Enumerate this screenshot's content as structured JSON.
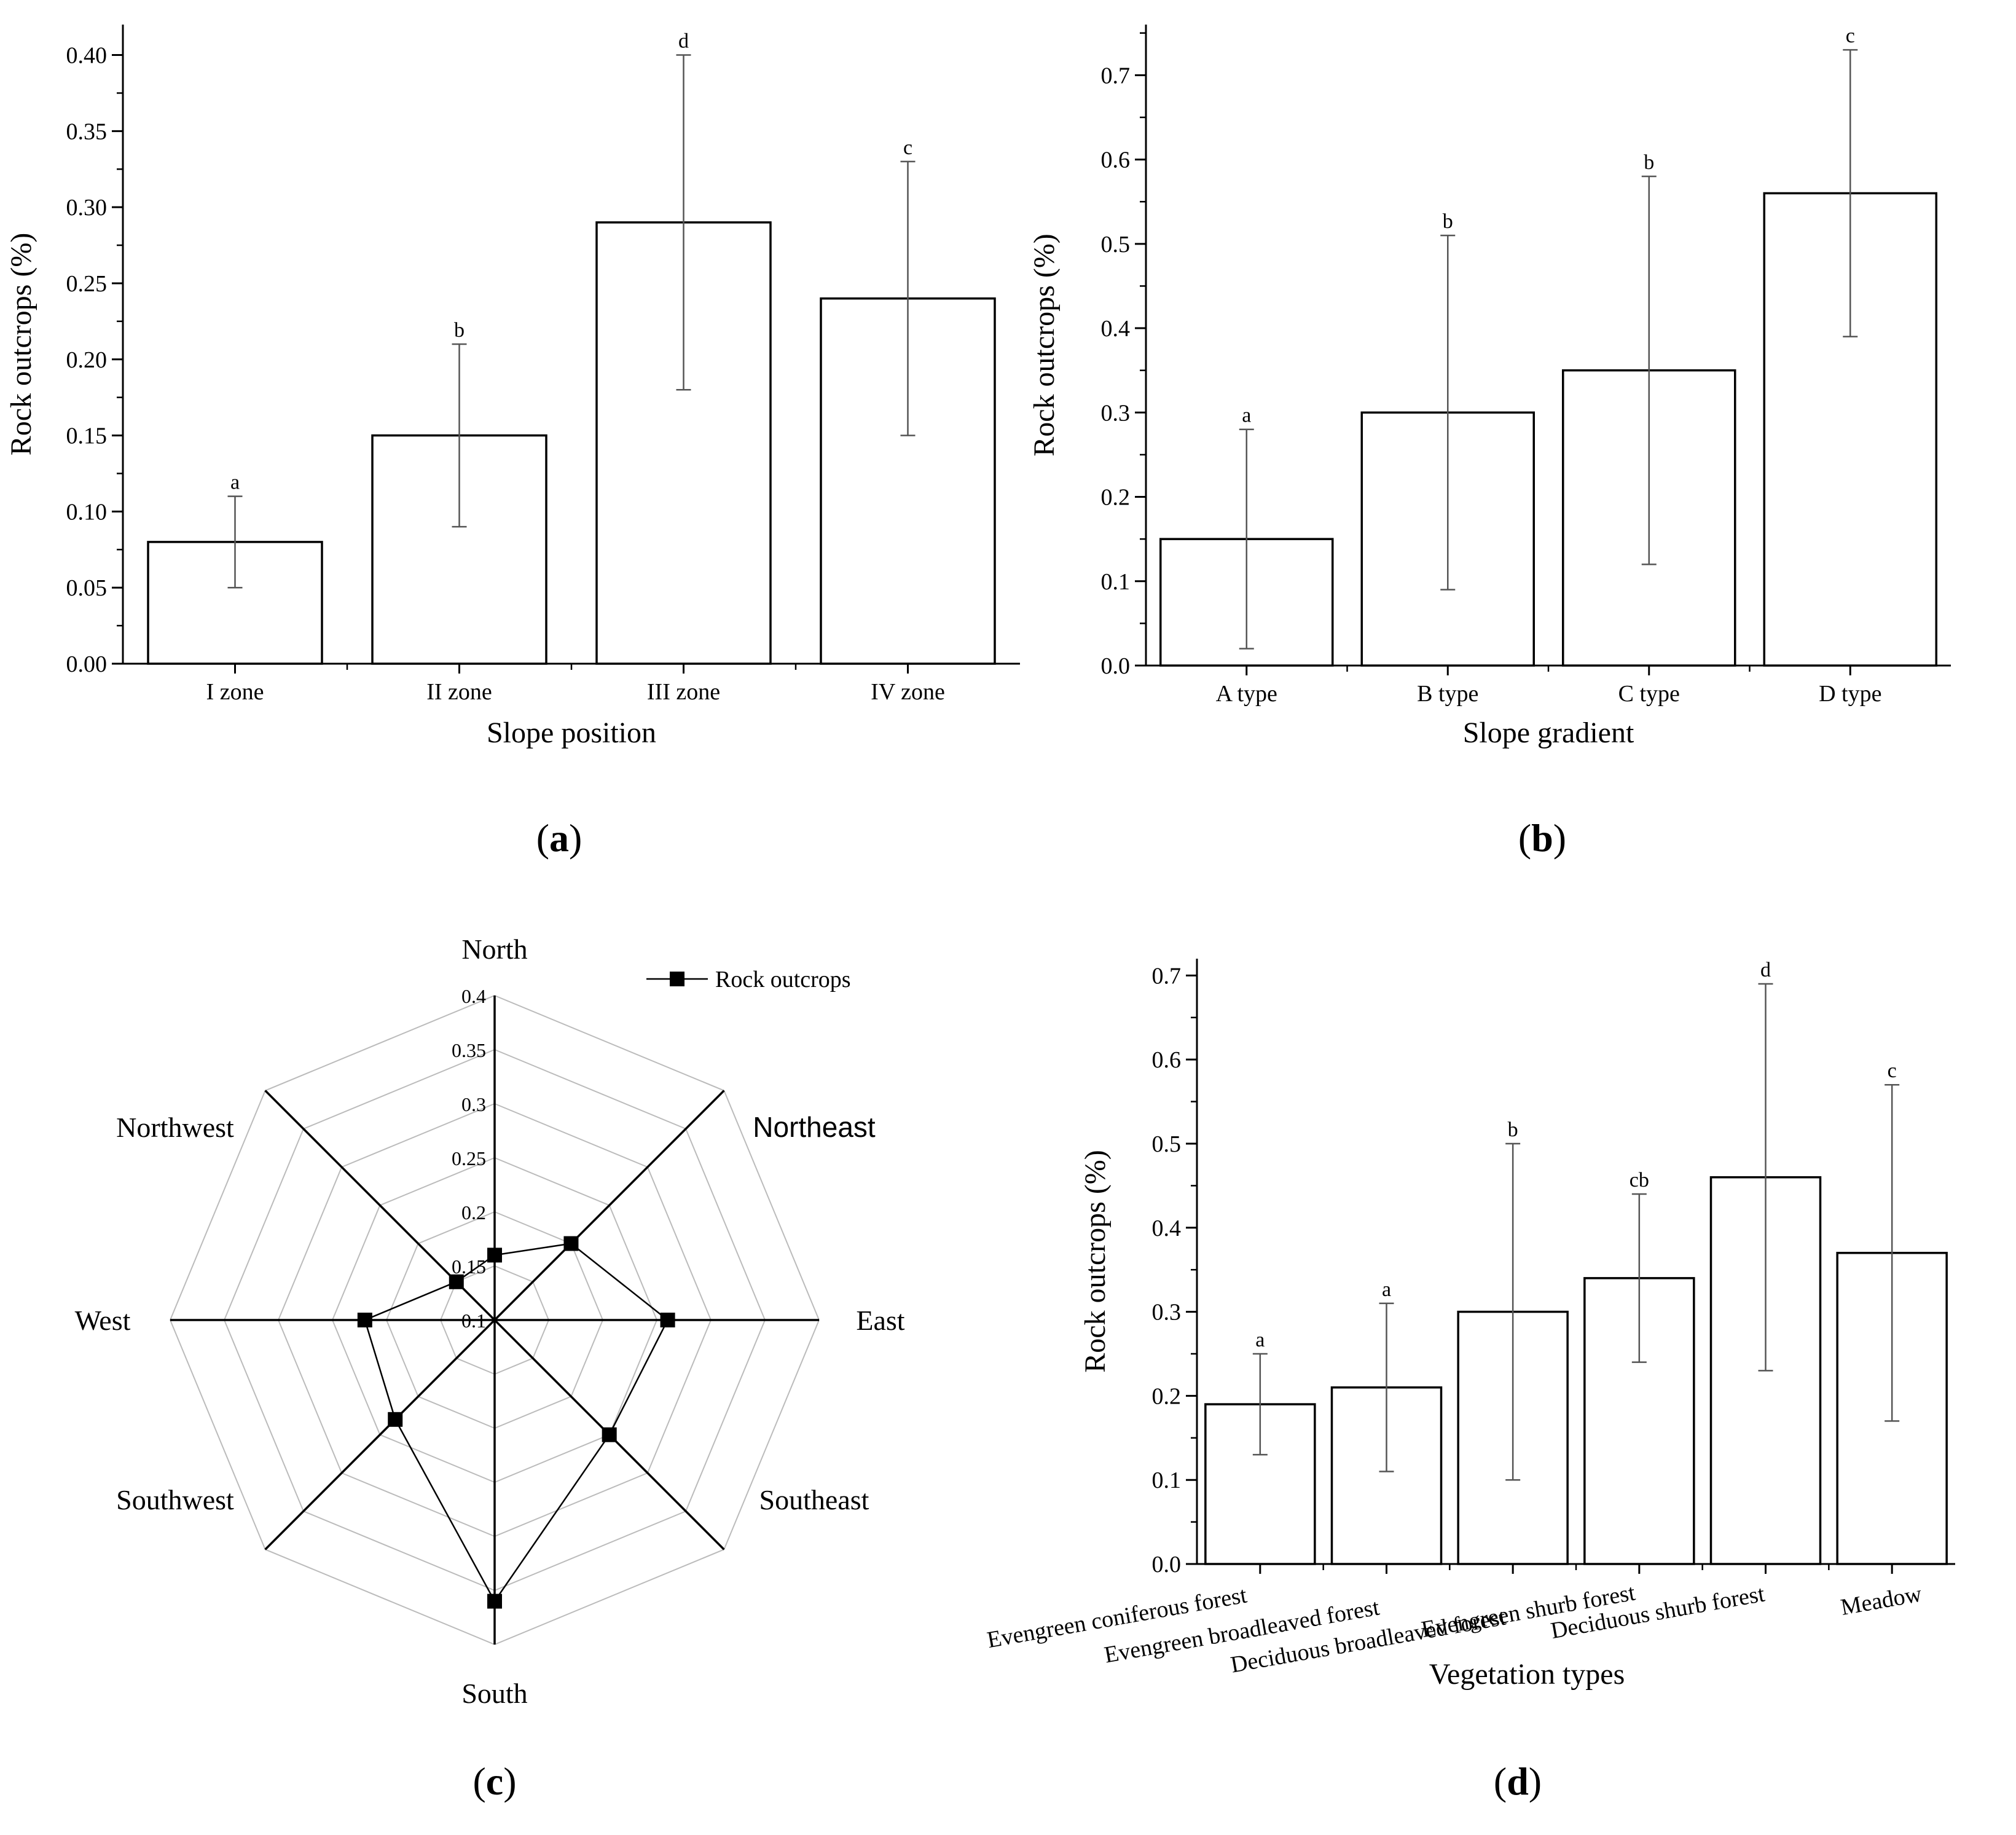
{
  "chart_data": [
    {
      "id": "a",
      "type": "bar",
      "panel_label": "a",
      "xlabel": "Slope position",
      "ylabel": "Rock outcrops (%)",
      "ylim": [
        0,
        0.42
      ],
      "yticks": [
        "0.00",
        "0.05",
        "0.10",
        "0.15",
        "0.20",
        "0.25",
        "0.30",
        "0.35",
        "0.40"
      ],
      "categories": [
        "I zone",
        "II zone",
        "III zone",
        "IV zone"
      ],
      "values": [
        0.08,
        0.15,
        0.29,
        0.24
      ],
      "err_low": [
        0.05,
        0.09,
        0.18,
        0.15
      ],
      "err_high": [
        0.11,
        0.21,
        0.4,
        0.33
      ],
      "significance": [
        "a",
        "b",
        "d",
        "c"
      ]
    },
    {
      "id": "b",
      "type": "bar",
      "panel_label": "b",
      "xlabel": "Slope gradient",
      "ylabel": "Rock outcrops (%)",
      "ylim": [
        0,
        0.76
      ],
      "yticks": [
        "0.0",
        "0.1",
        "0.2",
        "0.3",
        "0.4",
        "0.5",
        "0.6",
        "0.7"
      ],
      "categories": [
        "A type",
        "B type",
        "C type",
        "D type"
      ],
      "values": [
        0.15,
        0.3,
        0.35,
        0.56
      ],
      "err_low": [
        0.02,
        0.09,
        0.12,
        0.39
      ],
      "err_high": [
        0.28,
        0.51,
        0.58,
        0.73
      ],
      "significance": [
        "a",
        "b",
        "b",
        "c"
      ]
    },
    {
      "id": "c",
      "type": "radar",
      "panel_label": "c",
      "range": [
        0.1,
        0.4
      ],
      "rticks": [
        "0.1",
        "0.15",
        "0.2",
        "0.25",
        "0.3",
        "0.35",
        "0.4"
      ],
      "directions": [
        "North",
        "Northeast",
        "East",
        "Southeast",
        "South",
        "Southwest",
        "West",
        "Northwest"
      ],
      "values": [
        0.16,
        0.2,
        0.26,
        0.25,
        0.36,
        0.23,
        0.22,
        0.15
      ],
      "legend": "Rock outcrops"
    },
    {
      "id": "d",
      "type": "bar",
      "panel_label": "d",
      "xlabel": "Vegetation types",
      "ylabel": "Rock outcrops (%)",
      "ylim": [
        0,
        0.72
      ],
      "yticks": [
        "0.0",
        "0.1",
        "0.2",
        "0.3",
        "0.4",
        "0.5",
        "0.6",
        "0.7"
      ],
      "categories": [
        "Evengreen coniferous forest",
        "Evengreen broadleaved forest",
        "Deciduous broadleaved forest",
        "Evengreen shurb forest",
        "Deciduous shurb forest",
        "Meadow"
      ],
      "values": [
        0.19,
        0.21,
        0.3,
        0.34,
        0.46,
        0.37
      ],
      "err_low": [
        0.13,
        0.11,
        0.1,
        0.24,
        0.23,
        0.17
      ],
      "err_high": [
        0.25,
        0.31,
        0.5,
        0.44,
        0.69,
        0.57
      ],
      "significance": [
        "a",
        "a",
        "b",
        "cb",
        "d",
        "c"
      ]
    }
  ]
}
